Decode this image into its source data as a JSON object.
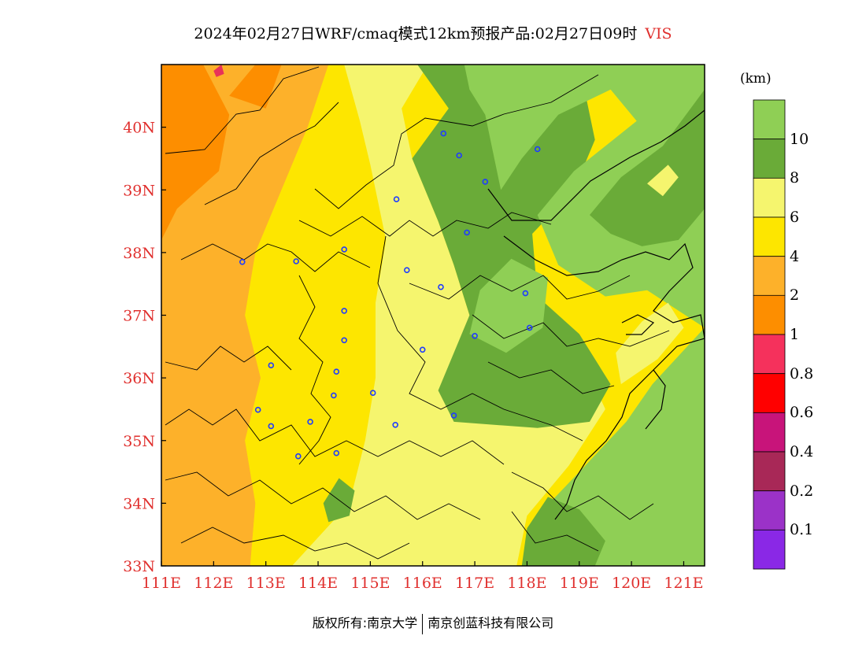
{
  "title": {
    "main": "2024年02月27日WRF/cmaq模式12km预报产品:02月27日09时",
    "variable": "VIS"
  },
  "map": {
    "lon_range": [
      111,
      121.4
    ],
    "lat_range": [
      33,
      41
    ],
    "lon_labels": [
      "111E",
      "112E",
      "113E",
      "114E",
      "115E",
      "116E",
      "117E",
      "118E",
      "119E",
      "120E",
      "121E"
    ],
    "lat_labels": [
      "33N",
      "34N",
      "35N",
      "36N",
      "37N",
      "38N",
      "39N",
      "40N"
    ],
    "label_color": "#e0302e",
    "regions": [
      {
        "name": "orange-west",
        "color": "#fdb12a",
        "points": [
          [
            111,
            33
          ],
          [
            112.7,
            33
          ],
          [
            112.8,
            34
          ],
          [
            112.6,
            35
          ],
          [
            112.9,
            36
          ],
          [
            112.6,
            37
          ],
          [
            112.8,
            38
          ],
          [
            113.3,
            39
          ],
          [
            113.8,
            40
          ],
          [
            114.2,
            41
          ],
          [
            111,
            41
          ]
        ]
      },
      {
        "name": "dark-orange-nw",
        "color": "#fd8e00",
        "points": [
          [
            111,
            38.2
          ],
          [
            111.3,
            38.7
          ],
          [
            112.1,
            39.3
          ],
          [
            112.3,
            40.2
          ],
          [
            111.8,
            41
          ],
          [
            111,
            41
          ]
        ]
      },
      {
        "name": "dark-orange-ne",
        "color": "#fd8e00",
        "points": [
          [
            112.3,
            40.5
          ],
          [
            112.8,
            41
          ],
          [
            113.3,
            41
          ],
          [
            113,
            40.3
          ]
        ]
      },
      {
        "name": "yellow-band",
        "color": "#fde600",
        "points": [
          [
            112.7,
            33
          ],
          [
            115.4,
            33
          ],
          [
            115,
            34
          ],
          [
            115.2,
            35
          ],
          [
            115.4,
            36
          ],
          [
            115.2,
            37
          ],
          [
            115.3,
            38
          ],
          [
            114.7,
            39
          ],
          [
            114.4,
            40
          ],
          [
            114.2,
            41
          ],
          [
            113.8,
            40
          ],
          [
            113.3,
            39
          ],
          [
            112.8,
            38
          ],
          [
            112.6,
            37
          ],
          [
            112.9,
            36
          ],
          [
            112.6,
            35
          ],
          [
            112.8,
            34
          ]
        ]
      },
      {
        "name": "light-yellow-central",
        "color": "#f5f56e",
        "points": [
          [
            113.5,
            33
          ],
          [
            117.8,
            33
          ],
          [
            118,
            33.8
          ],
          [
            118.8,
            34.6
          ],
          [
            119.5,
            35.5
          ],
          [
            119,
            36.4
          ],
          [
            118,
            36.9
          ],
          [
            116.9,
            37
          ],
          [
            116.6,
            37.8
          ],
          [
            116.3,
            38.5
          ],
          [
            115.8,
            39.5
          ],
          [
            115.6,
            40.3
          ],
          [
            116.1,
            41
          ],
          [
            114.5,
            41
          ],
          [
            114.8,
            40.1
          ],
          [
            115,
            39.4
          ],
          [
            115.3,
            38.2
          ],
          [
            115.1,
            37.2
          ],
          [
            115.1,
            36
          ],
          [
            114.9,
            35
          ],
          [
            114.6,
            34
          ]
        ]
      },
      {
        "name": "dark-green-belt",
        "color": "#6aab38",
        "points": [
          [
            115.9,
            41
          ],
          [
            116.5,
            40.3
          ],
          [
            115.8,
            39.5
          ],
          [
            116.3,
            38.5
          ],
          [
            116.6,
            37.8
          ],
          [
            116.9,
            37
          ],
          [
            116.3,
            35.8
          ],
          [
            116.6,
            35.3
          ],
          [
            118.2,
            35.2
          ],
          [
            119.2,
            35.3
          ],
          [
            119.6,
            35.9
          ],
          [
            119,
            36.7
          ],
          [
            118.2,
            37.3
          ],
          [
            118.1,
            38.3
          ],
          [
            118.9,
            39
          ],
          [
            119.3,
            39.8
          ],
          [
            119,
            41
          ]
        ]
      },
      {
        "name": "green-east",
        "color": "#8fcf55",
        "points": [
          [
            116.8,
            41
          ],
          [
            121.4,
            41
          ],
          [
            121.4,
            33
          ],
          [
            117.9,
            33
          ],
          [
            118.2,
            33.8
          ],
          [
            119,
            34.5
          ],
          [
            119.9,
            35.3
          ],
          [
            120.4,
            35.9
          ],
          [
            121.4,
            36.8
          ],
          [
            120.3,
            37.4
          ],
          [
            119.5,
            37.3
          ],
          [
            118.6,
            37.8
          ],
          [
            118.2,
            38.6
          ],
          [
            118.9,
            39.3
          ],
          [
            120.1,
            40.1
          ],
          [
            119.6,
            40.6
          ],
          [
            118.6,
            40.2
          ],
          [
            117.9,
            39.5
          ],
          [
            117.5,
            39
          ],
          [
            117.2,
            40.2
          ],
          [
            116.9,
            40.6
          ]
        ]
      },
      {
        "name": "green-shandong",
        "color": "#8fcf55",
        "points": [
          [
            117.1,
            37.4
          ],
          [
            117.7,
            37.9
          ],
          [
            118.4,
            37.6
          ],
          [
            118.3,
            36.8
          ],
          [
            117.6,
            36.4
          ],
          [
            116.9,
            36.7
          ]
        ]
      },
      {
        "name": "dark-green-sea",
        "color": "#6aab38",
        "points": [
          [
            119.2,
            38.6
          ],
          [
            119.8,
            39.2
          ],
          [
            120.6,
            39.7
          ],
          [
            121.4,
            40.6
          ],
          [
            121.4,
            38.7
          ],
          [
            120.9,
            38.2
          ],
          [
            120.2,
            38.1
          ],
          [
            119.6,
            38.3
          ]
        ]
      },
      {
        "name": "dark-green-south",
        "color": "#6aab38",
        "points": [
          [
            117.9,
            33
          ],
          [
            119.3,
            33
          ],
          [
            119.5,
            33.4
          ],
          [
            119,
            33.9
          ],
          [
            118.4,
            34.1
          ],
          [
            118,
            33.6
          ]
        ]
      },
      {
        "name": "dark-green-patch",
        "color": "#6aab38",
        "points": [
          [
            114.1,
            34
          ],
          [
            114.4,
            34.4
          ],
          [
            114.7,
            34.2
          ],
          [
            114.6,
            33.8
          ],
          [
            114.2,
            33.7
          ]
        ]
      },
      {
        "name": "light-yellow-coast",
        "color": "#f5f56e",
        "points": [
          [
            119.8,
            35.9
          ],
          [
            120.5,
            36.3
          ],
          [
            121,
            36.8
          ],
          [
            120.7,
            37.2
          ],
          [
            120.2,
            36.9
          ],
          [
            119.7,
            36.4
          ]
        ]
      },
      {
        "name": "light-yellow-bay",
        "color": "#f5f56e",
        "points": [
          [
            120.3,
            39.1
          ],
          [
            120.7,
            39.4
          ],
          [
            120.9,
            39.2
          ],
          [
            120.6,
            38.9
          ]
        ]
      },
      {
        "name": "magenta-spot",
        "color": "#e8325a",
        "points": [
          [
            112.0,
            40.9
          ],
          [
            112.15,
            41
          ],
          [
            112.2,
            40.85
          ],
          [
            112.05,
            40.8
          ]
        ]
      }
    ],
    "cities": [
      [
        116.4,
        39.9
      ],
      [
        116.7,
        39.55
      ],
      [
        117.2,
        39.13
      ],
      [
        118.2,
        39.65
      ],
      [
        115.5,
        38.85
      ],
      [
        116.85,
        38.32
      ],
      [
        112.55,
        37.85
      ],
      [
        113.58,
        37.86
      ],
      [
        114.5,
        38.05
      ],
      [
        115.7,
        37.72
      ],
      [
        116.35,
        37.45
      ],
      [
        117.97,
        37.35
      ],
      [
        114.5,
        37.07
      ],
      [
        114.5,
        36.6
      ],
      [
        116.0,
        36.45
      ],
      [
        117.0,
        36.67
      ],
      [
        118.05,
        36.8
      ],
      [
        113.1,
        36.2
      ],
      [
        114.35,
        36.1
      ],
      [
        114.3,
        35.72
      ],
      [
        115.05,
        35.76
      ],
      [
        116.6,
        35.4
      ],
      [
        112.85,
        35.49
      ],
      [
        113.1,
        35.23
      ],
      [
        113.85,
        35.3
      ],
      [
        115.48,
        35.25
      ],
      [
        114.35,
        34.8
      ],
      [
        113.62,
        34.75
      ]
    ]
  },
  "colorbar": {
    "unit": "(km)",
    "colors": [
      "#8fcf55",
      "#6aab38",
      "#f5f56e",
      "#fde600",
      "#fdb12a",
      "#fd8e00",
      "#f5315c",
      "#ff0000",
      "#c8147a",
      "#a82857",
      "#9b32c8",
      "#8a28e6"
    ],
    "labels": [
      "10",
      "8",
      "6",
      "4",
      "2",
      "1",
      "0.8",
      "0.6",
      "0.4",
      "0.2",
      "0.1"
    ]
  },
  "footer": {
    "left": "版权所有:南京大学",
    "right": "南京创蓝科技有限公司"
  }
}
